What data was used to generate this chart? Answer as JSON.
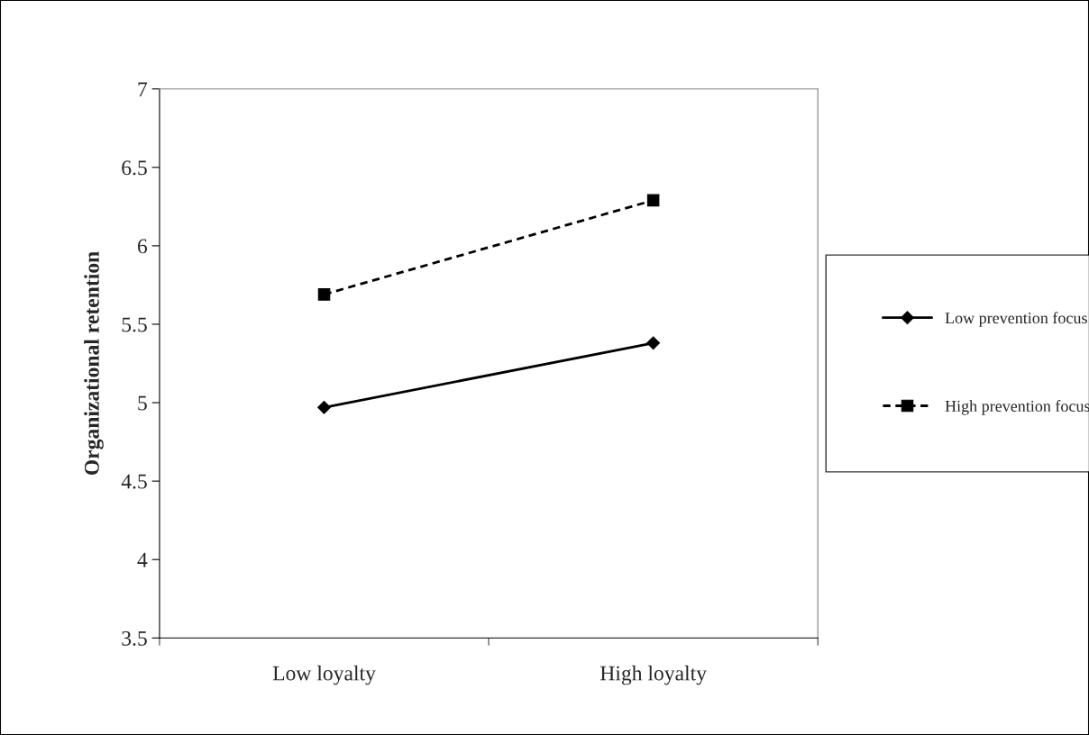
{
  "chart_data": {
    "type": "line",
    "ylabel": "Organizational retention",
    "categories": [
      "Low loyalty",
      "High loyalty"
    ],
    "series": [
      {
        "name": "Low prevention focus",
        "color": "#000000",
        "values": [
          4.97,
          5.38
        ],
        "marker": "diamond",
        "line_style": "solid"
      },
      {
        "name": "High prevention focus",
        "color": "#000000",
        "values": [
          5.69,
          6.29
        ],
        "marker": "square",
        "line_style": "dashed"
      }
    ],
    "ylim": [
      3.5,
      7
    ],
    "yticks": [
      3.5,
      4,
      4.5,
      5,
      5.5,
      6,
      6.5,
      7
    ],
    "grid": false,
    "legend": "right"
  }
}
